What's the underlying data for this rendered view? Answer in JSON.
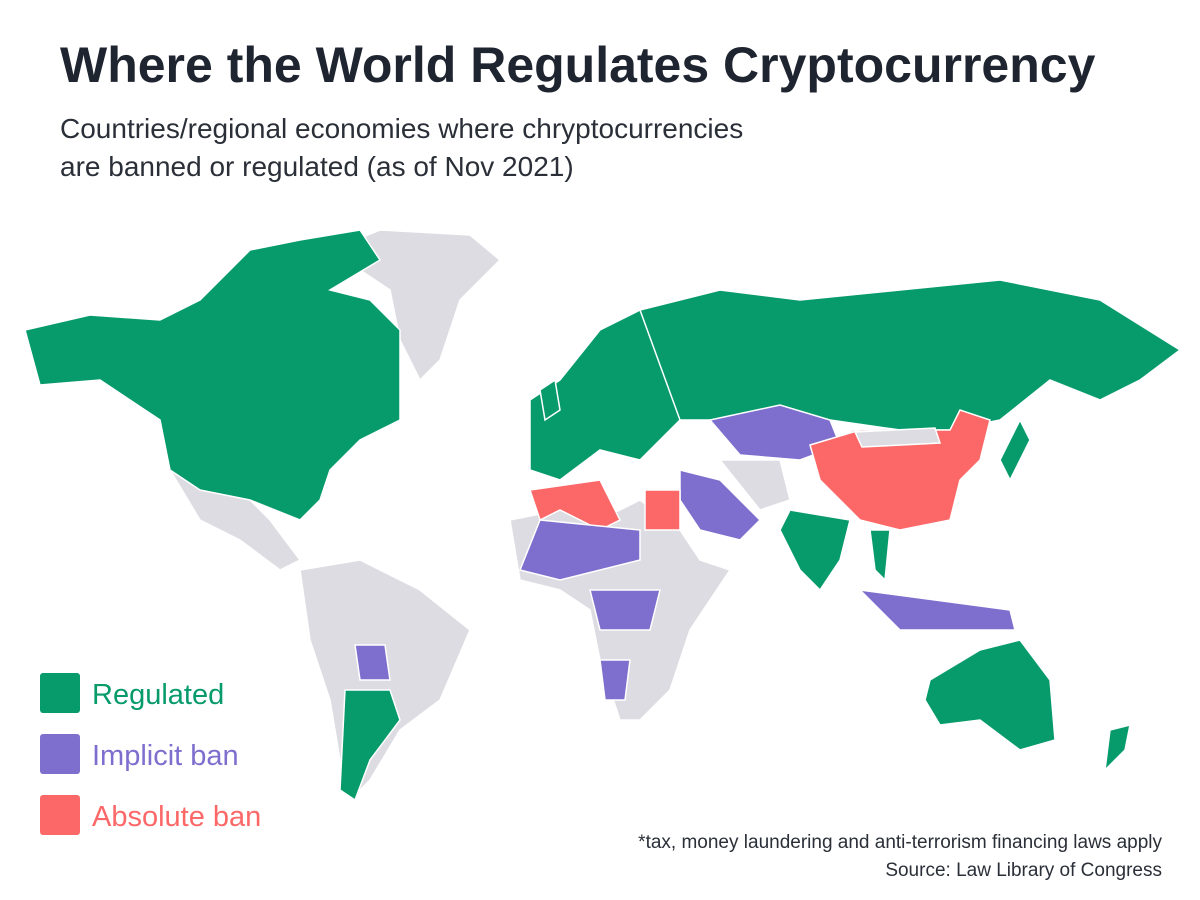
{
  "header": {
    "title": "Where the World Regulates Cryptocurrency",
    "subtitle": [
      "Countries/regional economies where chryptocurrencies",
      "are banned or regulated (as of Nov 2021)"
    ]
  },
  "legend": [
    {
      "label": "Regulated",
      "color": "#079b6b"
    },
    {
      "label": "Implicit ban",
      "color": "#7e6fcf"
    },
    {
      "label": "Absolute ban",
      "color": "#fc6868"
    }
  ],
  "footer": {
    "note": "*tax, money laundering and anti-terrorism financing laws apply",
    "source": "Source: Law Library of Congress"
  }
}
